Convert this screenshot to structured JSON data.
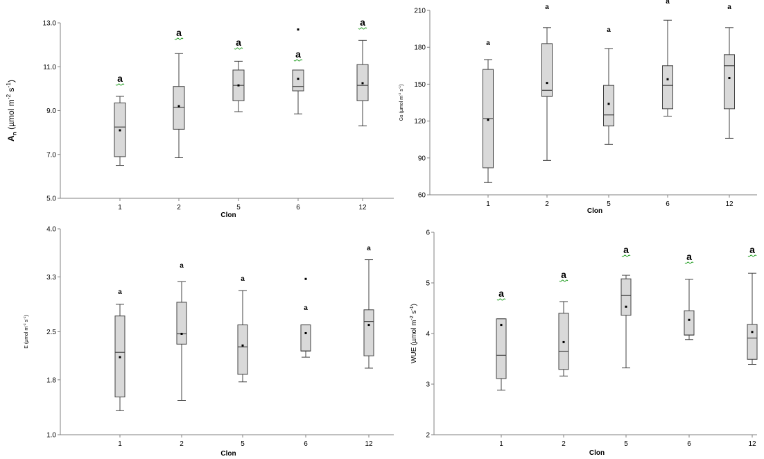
{
  "chart_data": [
    {
      "type": "box",
      "panel": "An",
      "xlabel": "Clon",
      "ylabel": {
        "main": "A",
        "sub": "n",
        "unit": " (µmol m",
        "sup1": "-2",
        "mid": " s",
        "sup2": "-1",
        "end": ")"
      },
      "ylim": [
        5.0,
        13.0
      ],
      "yticks": [
        "5.0",
        "7.0",
        "9.0",
        "11.0",
        "13.0"
      ],
      "categories": [
        "1",
        "2",
        "5",
        "6",
        "12"
      ],
      "boxes": [
        {
          "min": 6.5,
          "q1": 6.9,
          "median": 8.25,
          "q3": 9.35,
          "max": 9.65,
          "mean": 8.1
        },
        {
          "min": 6.85,
          "q1": 8.15,
          "median": 9.15,
          "q3": 10.1,
          "max": 11.6,
          "mean": 9.2
        },
        {
          "min": 8.95,
          "q1": 9.45,
          "median": 10.15,
          "q3": 10.85,
          "max": 11.25,
          "mean": 10.15
        },
        {
          "min": 8.85,
          "q1": 9.9,
          "median": 10.1,
          "q3": 10.85,
          "max": 10.85,
          "mean": 10.45
        },
        {
          "min": 8.3,
          "q1": 9.45,
          "median": 10.15,
          "q3": 11.1,
          "max": 12.2,
          "mean": 10.25
        }
      ],
      "outliers": [
        {
          "category": "6",
          "value": 12.7
        }
      ],
      "letters": [
        "a",
        "a",
        "a",
        "a",
        "a"
      ]
    },
    {
      "type": "box",
      "panel": "Gs",
      "xlabel": "Clon",
      "ylabel": {
        "main": "Gs",
        "sub": "",
        "unit": " (µmol m",
        "sup1": "-2",
        "mid": " s",
        "sup2": "-1",
        "end": ")"
      },
      "ylim": [
        60,
        210
      ],
      "yticks": [
        "60",
        "90",
        "120",
        "150",
        "180",
        "210"
      ],
      "categories": [
        "1",
        "2",
        "5",
        "6",
        "12"
      ],
      "boxes": [
        {
          "min": 70,
          "q1": 82,
          "median": 122,
          "q3": 162,
          "max": 170,
          "mean": 121
        },
        {
          "min": 88,
          "q1": 140,
          "median": 145,
          "q3": 183,
          "max": 196,
          "mean": 151
        },
        {
          "min": 101,
          "q1": 116,
          "median": 125,
          "q3": 149,
          "max": 179,
          "mean": 134
        },
        {
          "min": 124,
          "q1": 130,
          "median": 149,
          "q3": 165,
          "max": 202,
          "mean": 154
        },
        {
          "min": 106,
          "q1": 130,
          "median": 165,
          "q3": 174,
          "max": 196,
          "mean": 155
        }
      ],
      "outliers": [],
      "letters": [
        "a",
        "a",
        "a",
        "a",
        "a"
      ]
    },
    {
      "type": "box",
      "panel": "E",
      "xlabel": "Clon",
      "ylabel": {
        "main": "E",
        "sub": "",
        "unit": " (µmol m",
        "sup1": "-2",
        "mid": " s",
        "sup2": "-1",
        "end": ")"
      },
      "ylim": [
        1.0,
        4.0
      ],
      "yticks": [
        "1.0",
        "1.8",
        "2.5",
        "3.3",
        "4.0"
      ],
      "categories": [
        "1",
        "2",
        "5",
        "6",
        "12"
      ],
      "boxes": [
        {
          "min": 1.35,
          "q1": 1.55,
          "median": 2.2,
          "q3": 2.73,
          "max": 2.9,
          "mean": 2.13
        },
        {
          "min": 1.5,
          "q1": 2.32,
          "median": 2.47,
          "q3": 2.93,
          "max": 3.23,
          "mean": 2.47
        },
        {
          "min": 1.77,
          "q1": 1.88,
          "median": 2.28,
          "q3": 2.6,
          "max": 3.1,
          "mean": 2.3
        },
        {
          "min": 2.13,
          "q1": 2.22,
          "median": 2.22,
          "q3": 2.6,
          "max": 2.6,
          "mean": 2.48
        },
        {
          "min": 1.97,
          "q1": 2.15,
          "median": 2.65,
          "q3": 2.82,
          "max": 3.55,
          "mean": 2.6
        }
      ],
      "outliers": [
        {
          "category": "6",
          "value": 3.27
        }
      ],
      "letters": [
        "a",
        "a",
        "a",
        "a",
        "a"
      ]
    },
    {
      "type": "box",
      "panel": "WUE",
      "xlabel": "Clon",
      "ylabel": {
        "main": "WUE",
        "sub": "",
        "unit": " (µmol m",
        "sup1": "-2",
        "mid": " s",
        "sup2": "-1",
        "end": ")"
      },
      "ylim": [
        2,
        6
      ],
      "yticks": [
        "2",
        "3",
        "4",
        "5",
        "6"
      ],
      "categories": [
        "1",
        "2",
        "5",
        "6",
        "12"
      ],
      "boxes": [
        {
          "min": 2.88,
          "q1": 3.11,
          "median": 3.57,
          "q3": 4.29,
          "max": 4.29,
          "mean": 4.17
        },
        {
          "min": 3.16,
          "q1": 3.29,
          "median": 3.65,
          "q3": 4.4,
          "max": 4.63,
          "mean": 3.83
        },
        {
          "min": 3.32,
          "q1": 4.36,
          "median": 4.75,
          "q3": 5.08,
          "max": 5.15,
          "mean": 4.53
        },
        {
          "min": 3.88,
          "q1": 3.97,
          "median": 3.97,
          "q3": 4.45,
          "max": 5.07,
          "mean": 4.27
        },
        {
          "min": 3.39,
          "q1": 3.49,
          "median": 3.91,
          "q3": 4.18,
          "max": 5.19,
          "mean": 4.03
        }
      ],
      "outliers": [],
      "letters": [
        "a",
        "a",
        "a",
        "a",
        "a"
      ]
    }
  ],
  "colors": {
    "box_fill": "#d9d9d9",
    "box_stroke": "#404040",
    "axis": "#808080",
    "text": "#000000",
    "squiggle": "#1a9a1a"
  }
}
